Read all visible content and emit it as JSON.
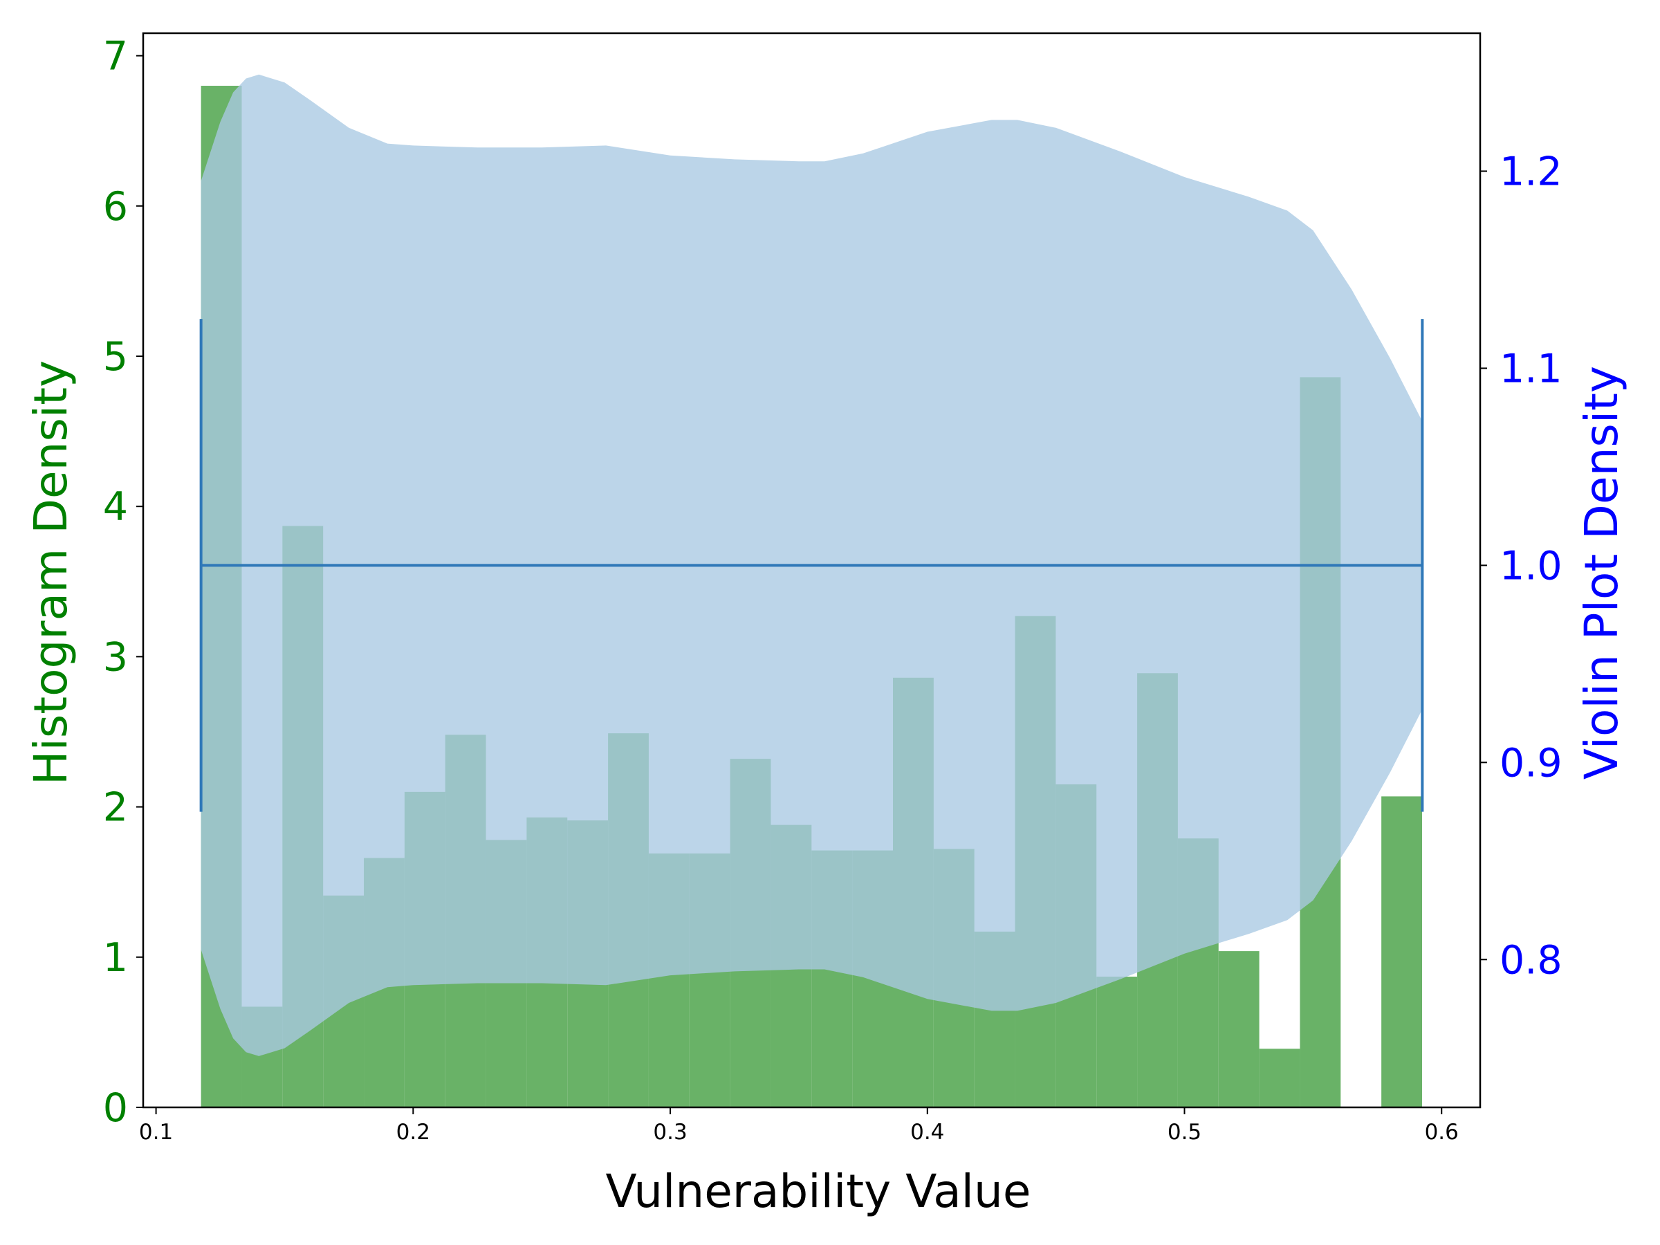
{
  "chart_data": {
    "type": "bar",
    "title": "",
    "xlabel": "Vulnerability Value",
    "ylabel_left": "Histogram Density",
    "ylabel_right": "Violin Plot Density",
    "xlim": [
      0.095,
      0.615
    ],
    "ylim_left": [
      0,
      7.15
    ],
    "ylim_right": [
      0.725,
      1.27
    ],
    "x_ticks": [
      0.1,
      0.2,
      0.3,
      0.4,
      0.5,
      0.6
    ],
    "x_tick_labels": [
      "0.1",
      "0.2",
      "0.3",
      "0.4",
      "0.5",
      "0.6"
    ],
    "y_left_ticks": [
      0,
      1,
      2,
      3,
      4,
      5,
      6,
      7
    ],
    "y_left_tick_labels": [
      "0",
      "1",
      "2",
      "3",
      "4",
      "5",
      "6",
      "7"
    ],
    "y_right_ticks": [
      0.8,
      0.9,
      1.0,
      1.1,
      1.2
    ],
    "y_right_tick_labels": [
      "0.8",
      "0.9",
      "1.0",
      "1.1",
      "1.2"
    ],
    "histogram": {
      "color": "#69b267",
      "bin_start": 0.1175,
      "bin_width": 0.01583,
      "values": [
        6.8,
        0.67,
        3.87,
        1.41,
        1.66,
        2.1,
        2.48,
        1.78,
        1.93,
        1.91,
        2.49,
        1.69,
        1.69,
        2.32,
        1.88,
        1.71,
        1.71,
        2.86,
        1.72,
        1.17,
        3.27,
        2.15,
        0.87,
        2.89,
        1.79,
        1.04,
        0.39,
        4.86,
        0.0,
        2.07
      ]
    },
    "violin": {
      "color": "#a9c9e3",
      "center": 1.0,
      "x_min": 0.1175,
      "x_max": 0.5925,
      "outline_x": [
        0.1175,
        0.125,
        0.13,
        0.135,
        0.14,
        0.15,
        0.16,
        0.175,
        0.19,
        0.2,
        0.225,
        0.25,
        0.275,
        0.3,
        0.325,
        0.35,
        0.36,
        0.375,
        0.4,
        0.425,
        0.435,
        0.45,
        0.475,
        0.5,
        0.525,
        0.54,
        0.55,
        0.565,
        0.58,
        0.5925
      ],
      "upper": [
        1.195,
        1.225,
        1.24,
        1.247,
        1.249,
        1.245,
        1.236,
        1.222,
        1.214,
        1.213,
        1.212,
        1.212,
        1.213,
        1.208,
        1.206,
        1.205,
        1.205,
        1.209,
        1.22,
        1.226,
        1.226,
        1.222,
        1.21,
        1.197,
        1.187,
        1.18,
        1.17,
        1.14,
        1.105,
        1.073
      ],
      "lower": [
        0.805,
        0.775,
        0.76,
        0.753,
        0.751,
        0.755,
        0.764,
        0.778,
        0.786,
        0.787,
        0.788,
        0.788,
        0.787,
        0.792,
        0.794,
        0.795,
        0.795,
        0.791,
        0.78,
        0.774,
        0.774,
        0.778,
        0.79,
        0.803,
        0.813,
        0.82,
        0.83,
        0.86,
        0.895,
        0.927
      ],
      "whisker_low": 0.875,
      "whisker_high": 1.125,
      "line_color": "#2f78b8"
    },
    "colors": {
      "left_axis": "#008000",
      "right_axis": "#0000ff",
      "x_axis": "#000000"
    }
  }
}
